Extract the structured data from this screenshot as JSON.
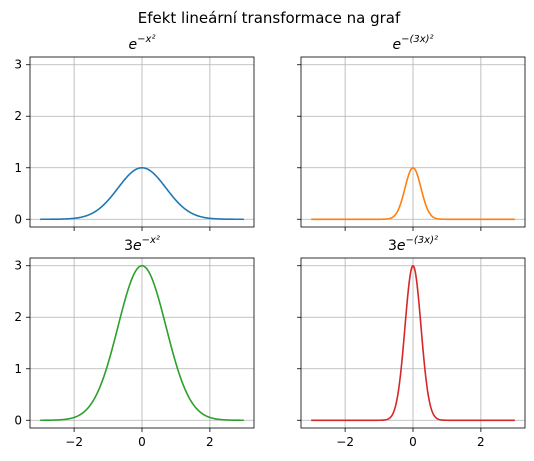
{
  "suptitle": "Efekt lineární transformace na graf",
  "colors": {
    "series_1": "#1f77b4",
    "series_2": "#ff7f0e",
    "series_3": "#2ca02c",
    "series_4": "#d62728",
    "grid": "#b0b0b0",
    "axes": "#000000"
  },
  "chart_data": [
    {
      "type": "line",
      "title_base": "e",
      "title_exp": "−x²",
      "amplitude": 1,
      "scale": 1,
      "color": "#1f77b4",
      "xlim": [
        -3.3,
        3.3
      ],
      "ylim": [
        -0.15,
        3.15
      ],
      "xticks": [
        -2,
        0,
        2
      ],
      "yticks": [
        0,
        1,
        2,
        3
      ],
      "show_xticklabels": false,
      "show_yticklabels": true,
      "grid": true,
      "x_range": [
        -3,
        3
      ]
    },
    {
      "type": "line",
      "title_base": "e",
      "title_exp": "−(3x)²",
      "amplitude": 1,
      "scale": 3,
      "color": "#ff7f0e",
      "xlim": [
        -3.3,
        3.3
      ],
      "ylim": [
        -0.15,
        3.15
      ],
      "xticks": [
        -2,
        0,
        2
      ],
      "yticks": [
        0,
        1,
        2,
        3
      ],
      "show_xticklabels": false,
      "show_yticklabels": false,
      "grid": true,
      "x_range": [
        -3,
        3
      ]
    },
    {
      "type": "line",
      "title_coef": "3",
      "title_base": "e",
      "title_exp": "−x²",
      "amplitude": 3,
      "scale": 1,
      "color": "#2ca02c",
      "xlim": [
        -3.3,
        3.3
      ],
      "ylim": [
        -0.15,
        3.15
      ],
      "xticks": [
        -2,
        0,
        2
      ],
      "yticks": [
        0,
        1,
        2,
        3
      ],
      "show_xticklabels": true,
      "show_yticklabels": true,
      "grid": true,
      "x_range": [
        -3,
        3
      ]
    },
    {
      "type": "line",
      "title_coef": "3",
      "title_base": "e",
      "title_exp": "−(3x)²",
      "amplitude": 3,
      "scale": 3,
      "color": "#d62728",
      "xlim": [
        -3.3,
        3.3
      ],
      "ylim": [
        -0.15,
        3.15
      ],
      "xticks": [
        -2,
        0,
        2
      ],
      "yticks": [
        0,
        1,
        2,
        3
      ],
      "show_xticklabels": true,
      "show_yticklabels": false,
      "grid": true,
      "x_range": [
        -3,
        3
      ]
    }
  ]
}
